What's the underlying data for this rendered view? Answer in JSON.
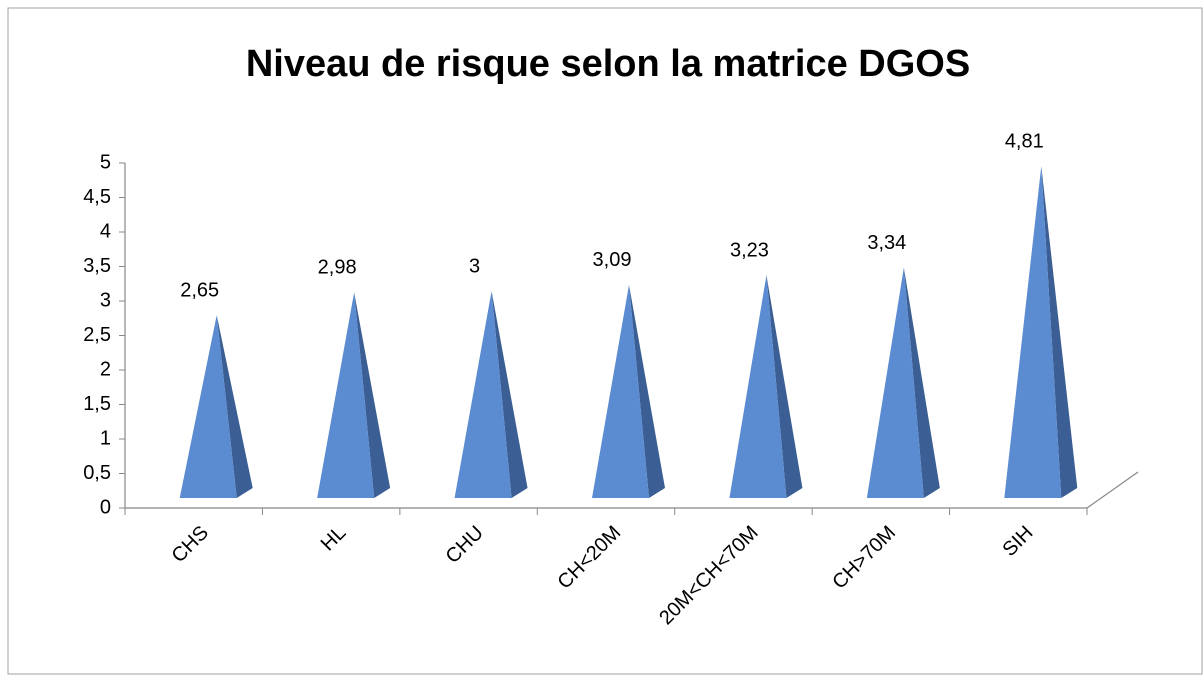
{
  "chart_data": {
    "type": "pyramid",
    "title": "Niveau de risque selon la matrice DGOS",
    "categories": [
      "CHS",
      "HL",
      "CHU",
      "CH<20M",
      "20M<CH<70M",
      "CH>70M",
      "SIH"
    ],
    "values": [
      2.65,
      2.98,
      3,
      3.09,
      3.23,
      3.34,
      4.81
    ],
    "value_labels": [
      "2,65",
      "2,98",
      "3",
      "3,09",
      "3,23",
      "3,34",
      "4,81"
    ],
    "color": "#5b8bd0",
    "side_color": "#3b5f94",
    "ylim": [
      0,
      5
    ],
    "yticks": [
      0,
      {
        "value": 0.5,
        "label": "0,5"
      },
      1,
      {
        "value": 1.5,
        "label": "1,5"
      },
      2,
      {
        "value": 2.5,
        "label": "2,5"
      },
      3,
      {
        "value": 3.5,
        "label": "3,5"
      },
      4,
      {
        "value": 4.5,
        "label": "4,5"
      },
      5
    ]
  }
}
